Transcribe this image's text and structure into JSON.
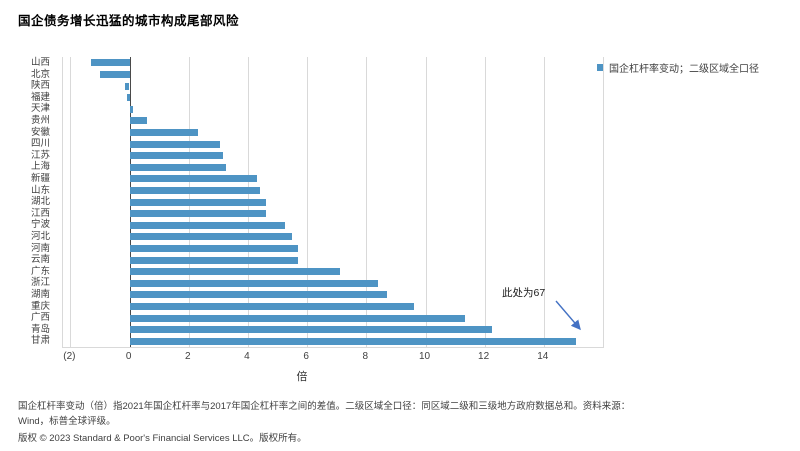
{
  "title": "国企债务增长迅猛的城市构成尾部风险",
  "legend": {
    "label": "国企杠杆率变动；二级区域全口径",
    "swatch_color": "#4E94C4"
  },
  "chart_data": {
    "type": "bar",
    "orientation": "horizontal",
    "title": "国企债务增长迅猛的城市构成尾部风险",
    "categories": [
      "山西",
      "北京",
      "陕西",
      "福建",
      "天津",
      "贵州",
      "安徽",
      "四川",
      "江苏",
      "上海",
      "新疆",
      "山东",
      "湖北",
      "江西",
      "宁波",
      "河北",
      "河南",
      "云南",
      "广东",
      "浙江",
      "湖南",
      "重庆",
      "广西",
      "青岛",
      "甘肃"
    ],
    "values": [
      -1.3,
      -1.0,
      -0.15,
      -0.1,
      0.1,
      0.6,
      2.3,
      3.05,
      3.15,
      3.25,
      4.3,
      4.4,
      4.6,
      4.6,
      5.25,
      5.5,
      5.7,
      5.7,
      7.1,
      8.4,
      8.7,
      9.6,
      11.35,
      12.25,
      15.1
    ],
    "xlabel": "倍",
    "xticks": [
      "(2)",
      "0",
      "2",
      "4",
      "6",
      "8",
      "10",
      "12",
      "14"
    ],
    "xtick_values": [
      -2,
      0,
      2,
      4,
      6,
      8,
      10,
      12,
      14
    ],
    "grid_values": [
      -2,
      2,
      4,
      6,
      8,
      10,
      12,
      14
    ],
    "xlim": [
      -2.25,
      16
    ],
    "grid": true,
    "legend_position": "top-right",
    "bar_color": "#4E94C4",
    "annotation": {
      "text": "此处为67",
      "target_category": "甘肃",
      "actual_value": 67,
      "arrow_color": "#4472C4"
    }
  },
  "footnote": {
    "line1": "国企杠杆率变动（倍）指2021年国企杠杆率与2017年国企杠杆率之间的差值。二级区域全口径：同区域二级和三级地方政府数据总和。资料来源：",
    "line2": "Wind，标普全球评级。"
  },
  "copyright": "版权 © 2023 Standard & Poor's Financial Services LLC。版权所有。"
}
